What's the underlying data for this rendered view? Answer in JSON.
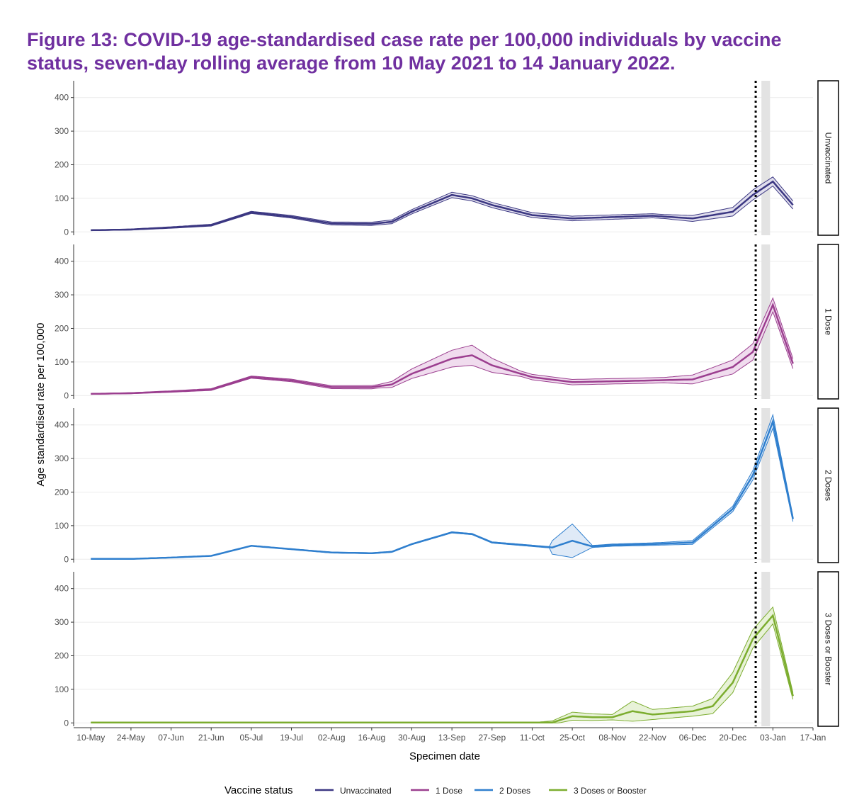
{
  "title": "Figure 13: COVID-19 age-standardised case rate per 100,000 individuals by vaccine status, seven-day rolling average from 10 May 2021 to 14 January 2022.",
  "chart_data": {
    "type": "line",
    "xlabel": "Specimen date",
    "ylabel": "Age standardised rate per 100,000",
    "x_ticks": [
      "10-May",
      "24-May",
      "07-Jun",
      "21-Jun",
      "05-Jul",
      "19-Jul",
      "02-Aug",
      "16-Aug",
      "30-Aug",
      "13-Sep",
      "27-Sep",
      "11-Oct",
      "25-Oct",
      "08-Nov",
      "22-Nov",
      "06-Dec",
      "20-Dec",
      "03-Jan",
      "17-Jan"
    ],
    "y_ticks": [
      0,
      100,
      200,
      300,
      400
    ],
    "ylim": [
      -10,
      450
    ],
    "xlim": [
      -6,
      252
    ],
    "x_unit": "days since 10-May-2021",
    "reference_line_day": 232,
    "shaded_band_days": [
      234,
      237
    ],
    "legend": {
      "title": "Vaccine status",
      "position": "bottom"
    },
    "series": [
      {
        "name": "Unvaccinated",
        "color": "#3b3782",
        "band_color": "#e1dfee",
        "points": [
          [
            0,
            5
          ],
          [
            14,
            7
          ],
          [
            28,
            13
          ],
          [
            42,
            20
          ],
          [
            56,
            58
          ],
          [
            70,
            45
          ],
          [
            84,
            25
          ],
          [
            98,
            24
          ],
          [
            105,
            30
          ],
          [
            112,
            60
          ],
          [
            126,
            110
          ],
          [
            133,
            100
          ],
          [
            140,
            80
          ],
          [
            154,
            50
          ],
          [
            168,
            40
          ],
          [
            196,
            48
          ],
          [
            210,
            40
          ],
          [
            224,
            60
          ],
          [
            231,
            110
          ],
          [
            238,
            150
          ],
          [
            245,
            80
          ]
        ],
        "spread": [
          [
            0,
            1
          ],
          [
            100,
            5
          ],
          [
            126,
            8
          ],
          [
            200,
            6
          ],
          [
            232,
            15
          ],
          [
            245,
            12
          ]
        ]
      },
      {
        "name": "1 Dose",
        "color": "#9b3e8f",
        "band_color": "#f0dcee",
        "points": [
          [
            0,
            5
          ],
          [
            14,
            7
          ],
          [
            28,
            12
          ],
          [
            42,
            18
          ],
          [
            56,
            55
          ],
          [
            70,
            45
          ],
          [
            84,
            25
          ],
          [
            98,
            25
          ],
          [
            105,
            33
          ],
          [
            112,
            65
          ],
          [
            126,
            110
          ],
          [
            133,
            120
          ],
          [
            140,
            90
          ],
          [
            154,
            55
          ],
          [
            168,
            40
          ],
          [
            196,
            45
          ],
          [
            210,
            48
          ],
          [
            224,
            85
          ],
          [
            231,
            130
          ],
          [
            238,
            270
          ],
          [
            245,
            95
          ]
        ],
        "spread": [
          [
            0,
            1
          ],
          [
            100,
            5
          ],
          [
            126,
            25
          ],
          [
            133,
            30
          ],
          [
            150,
            8
          ],
          [
            200,
            8
          ],
          [
            232,
            25
          ],
          [
            245,
            15
          ]
        ]
      },
      {
        "name": "2 Doses",
        "color": "#2f7fce",
        "band_color": "#dfeaf7",
        "points": [
          [
            0,
            1
          ],
          [
            14,
            1
          ],
          [
            28,
            5
          ],
          [
            42,
            10
          ],
          [
            56,
            40
          ],
          [
            70,
            30
          ],
          [
            84,
            20
          ],
          [
            98,
            18
          ],
          [
            105,
            22
          ],
          [
            112,
            45
          ],
          [
            126,
            80
          ],
          [
            133,
            75
          ],
          [
            140,
            50
          ],
          [
            154,
            40
          ],
          [
            161,
            35
          ],
          [
            168,
            55
          ],
          [
            175,
            38
          ],
          [
            182,
            42
          ],
          [
            196,
            45
          ],
          [
            210,
            50
          ],
          [
            224,
            150
          ],
          [
            231,
            250
          ],
          [
            238,
            410
          ],
          [
            245,
            120
          ]
        ],
        "spread": [
          [
            0,
            0.5
          ],
          [
            160,
            2
          ],
          [
            161,
            20
          ],
          [
            168,
            50
          ],
          [
            175,
            3
          ],
          [
            200,
            4
          ],
          [
            224,
            8
          ],
          [
            238,
            20
          ],
          [
            245,
            8
          ]
        ]
      },
      {
        "name": "3 Doses or Booster",
        "color": "#7cad2f",
        "band_color": "#e8f2d8",
        "points": [
          [
            0,
            1
          ],
          [
            155,
            1
          ],
          [
            161,
            1
          ],
          [
            168,
            20
          ],
          [
            175,
            17
          ],
          [
            182,
            17
          ],
          [
            189,
            35
          ],
          [
            196,
            25
          ],
          [
            203,
            30
          ],
          [
            210,
            35
          ],
          [
            217,
            50
          ],
          [
            224,
            120
          ],
          [
            231,
            250
          ],
          [
            238,
            320
          ],
          [
            245,
            80
          ]
        ],
        "spread": [
          [
            0,
            0.5
          ],
          [
            155,
            0.5
          ],
          [
            161,
            5
          ],
          [
            168,
            12
          ],
          [
            182,
            8
          ],
          [
            189,
            30
          ],
          [
            196,
            15
          ],
          [
            210,
            15
          ],
          [
            224,
            30
          ],
          [
            238,
            25
          ],
          [
            245,
            10
          ]
        ]
      }
    ]
  }
}
